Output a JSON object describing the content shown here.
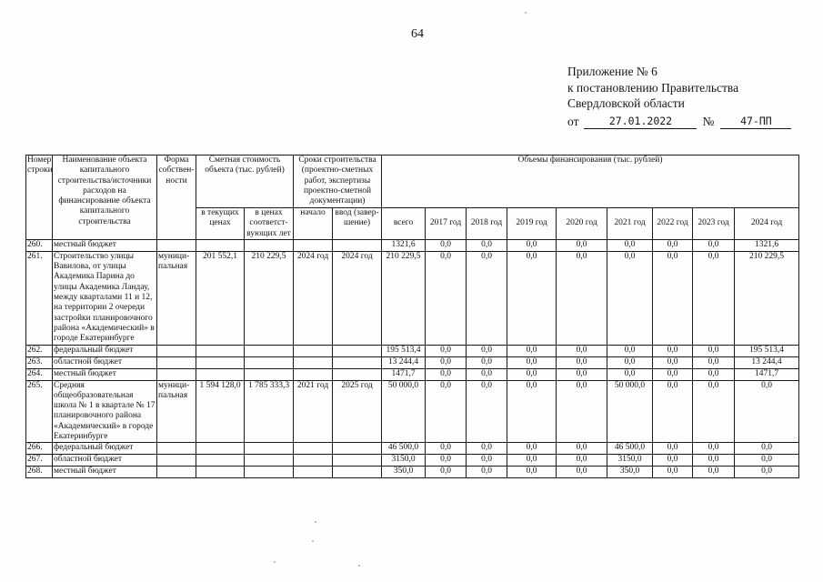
{
  "page": {
    "number": "64"
  },
  "appendix": {
    "lines": [
      "Приложение № 6",
      "к постановлению Правительства",
      "Свердловской области"
    ],
    "date_label": "от",
    "date_value": "27.01.2022",
    "number_label": "№",
    "number_value": "47-ПП"
  },
  "table": {
    "header": {
      "col_num": "Номер строки",
      "col_name": "Наименование объекта капитального строительства/источники расходов на финансирование объекта капитального строительства",
      "col_form": "Форма собствен-ности",
      "col_cost_group": "Сметная стоимость объекта (тыс. рублей)",
      "col_terms_group": "Сроки строительства (проектно-сметных работ, экспертизы проектно-сметной документации)",
      "col_financing_group": "Объемы финансирования (тыс. рублей)",
      "col_cost_current": "в текущих ценах",
      "col_cost_years": "в ценах соответст-вующих лет",
      "col_start": "начало",
      "col_end": "ввод (завер-шение)",
      "years": [
        "всего",
        "2017 год",
        "2018 год",
        "2019 год",
        "2020 год",
        "2021 год",
        "2022 год",
        "2023 год",
        "2024 год"
      ]
    },
    "rows": [
      {
        "num": "260.",
        "name": "местный бюджет",
        "form": "",
        "cost_current": "",
        "cost_years": "",
        "start": "",
        "end": "",
        "values": [
          "1321,6",
          "0,0",
          "0,0",
          "0,0",
          "0,0",
          "0,0",
          "0,0",
          "0,0",
          "1321,6"
        ]
      },
      {
        "num": "261.",
        "name": "Строительство улицы Вавилова, от улицы Академика Парина до улицы Академика Ландау, между кварталами 11 и 12, на территории 2 очереди застройки планировочного района «Академический» в городе Екатеринбурге",
        "form": "муници-пальная",
        "cost_current": "201 552,1",
        "cost_years": "210 229,5",
        "start": "2024 год",
        "end": "2024 год",
        "values": [
          "210 229,5",
          "0,0",
          "0,0",
          "0,0",
          "0,0",
          "0,0",
          "0,0",
          "0,0",
          "210 229,5"
        ]
      },
      {
        "num": "262.",
        "name": "федеральный бюджет",
        "form": "",
        "cost_current": "",
        "cost_years": "",
        "start": "",
        "end": "",
        "values": [
          "195 513,4",
          "0,0",
          "0,0",
          "0,0",
          "0,0",
          "0,0",
          "0,0",
          "0,0",
          "195 513,4"
        ]
      },
      {
        "num": "263.",
        "name": "областной бюджет",
        "form": "",
        "cost_current": "",
        "cost_years": "",
        "start": "",
        "end": "",
        "values": [
          "13 244,4",
          "0,0",
          "0,0",
          "0,0",
          "0,0",
          "0,0",
          "0,0",
          "0,0",
          "13 244,4"
        ]
      },
      {
        "num": "264.",
        "name": "местный бюджет",
        "form": "",
        "cost_current": "",
        "cost_years": "",
        "start": "",
        "end": "",
        "values": [
          "1471,7",
          "0,0",
          "0,0",
          "0,0",
          "0,0",
          "0,0",
          "0,0",
          "0,0",
          "1471,7"
        ]
      },
      {
        "num": "265.",
        "name": "Средняя общеобразовательная школа № 1 в квартале № 17 планировочного района «Академический» в городе Екатеринбурге",
        "form": "муници-пальная",
        "cost_current": "1 594 128,0",
        "cost_years": "1 785 333,3",
        "start": "2021 год",
        "end": "2025 год",
        "values": [
          "50 000,0",
          "0,0",
          "0,0",
          "0,0",
          "0,0",
          "50 000,0",
          "0,0",
          "0,0",
          "0,0"
        ]
      },
      {
        "num": "266.",
        "name": "федеральный бюджет",
        "form": "",
        "cost_current": "",
        "cost_years": "",
        "start": "",
        "end": "",
        "values": [
          "46 500,0",
          "0,0",
          "0,0",
          "0,0",
          "0,0",
          "46 500,0",
          "0,0",
          "0,0",
          "0,0"
        ]
      },
      {
        "num": "267.",
        "name": "областной бюджет",
        "form": "",
        "cost_current": "",
        "cost_years": "",
        "start": "",
        "end": "",
        "values": [
          "3150,0",
          "0,0",
          "0,0",
          "0,0",
          "0,0",
          "3150,0",
          "0,0",
          "0,0",
          "0,0"
        ]
      },
      {
        "num": "268.",
        "name": "местный бюджет",
        "form": "",
        "cost_current": "",
        "cost_years": "",
        "start": "",
        "end": "",
        "values": [
          "350,0",
          "0,0",
          "0,0",
          "0,0",
          "0,0",
          "350,0",
          "0,0",
          "0,0",
          "0,0"
        ]
      }
    ]
  }
}
